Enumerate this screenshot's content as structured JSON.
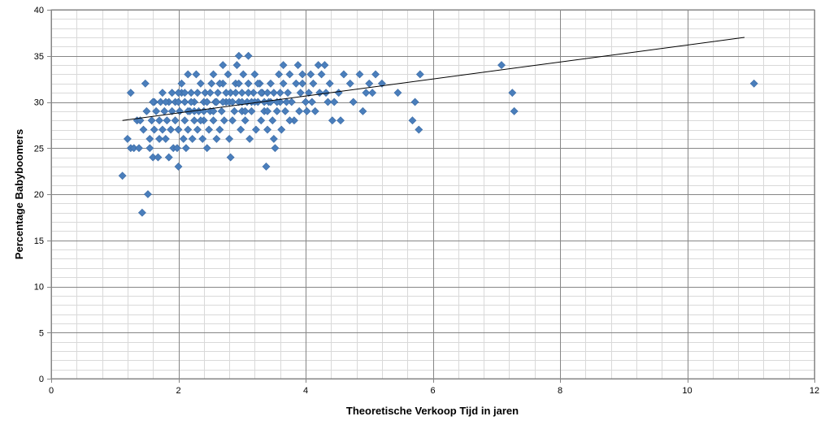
{
  "chart_data": {
    "type": "scatter",
    "xlabel": "Theoretische Verkoop Tijd in jaren",
    "ylabel": "Percentage Babyboomers",
    "xlim": [
      0,
      12
    ],
    "ylim": [
      0,
      40
    ],
    "x_ticks": [
      "0",
      "2",
      "4",
      "6",
      "8",
      "10",
      "12"
    ],
    "y_ticks": [
      "0",
      "5",
      "10",
      "15",
      "20",
      "25",
      "30",
      "35",
      "40"
    ],
    "grid": true,
    "legend": "none",
    "marker_color": "#4a7ebb",
    "trendline": {
      "color": "#000000",
      "x": [
        1.12,
        10.9
      ],
      "y": [
        28,
        37
      ]
    },
    "points": [
      [
        1.12,
        22
      ],
      [
        1.2,
        26
      ],
      [
        1.25,
        25
      ],
      [
        1.25,
        31
      ],
      [
        1.3,
        25
      ],
      [
        1.35,
        28
      ],
      [
        1.38,
        25
      ],
      [
        1.4,
        28
      ],
      [
        1.43,
        18
      ],
      [
        1.45,
        27
      ],
      [
        1.48,
        32
      ],
      [
        1.5,
        29
      ],
      [
        1.52,
        20
      ],
      [
        1.55,
        25
      ],
      [
        1.55,
        26
      ],
      [
        1.58,
        28
      ],
      [
        1.6,
        24
      ],
      [
        1.62,
        27
      ],
      [
        1.62,
        30
      ],
      [
        1.65,
        29
      ],
      [
        1.68,
        24
      ],
      [
        1.7,
        26
      ],
      [
        1.7,
        28
      ],
      [
        1.72,
        30
      ],
      [
        1.75,
        27
      ],
      [
        1.75,
        31
      ],
      [
        1.78,
        29
      ],
      [
        1.8,
        26
      ],
      [
        1.82,
        28
      ],
      [
        1.85,
        24
      ],
      [
        1.85,
        30
      ],
      [
        1.88,
        27
      ],
      [
        1.9,
        29
      ],
      [
        1.92,
        25
      ],
      [
        1.95,
        28
      ],
      [
        1.95,
        30
      ],
      [
        1.98,
        25
      ],
      [
        2.0,
        23
      ],
      [
        2.0,
        27
      ],
      [
        2.02,
        29
      ],
      [
        2.05,
        31
      ],
      [
        2.05,
        32
      ],
      [
        2.08,
        26
      ],
      [
        2.1,
        28
      ],
      [
        2.1,
        30
      ],
      [
        2.12,
        25
      ],
      [
        2.15,
        27
      ],
      [
        2.15,
        33
      ],
      [
        2.18,
        29
      ],
      [
        2.2,
        31
      ],
      [
        2.22,
        26
      ],
      [
        2.25,
        28
      ],
      [
        2.25,
        30
      ],
      [
        2.28,
        33
      ],
      [
        2.3,
        27
      ],
      [
        2.32,
        29
      ],
      [
        2.35,
        32
      ],
      [
        2.38,
        26
      ],
      [
        2.4,
        28
      ],
      [
        2.4,
        30
      ],
      [
        2.42,
        31
      ],
      [
        2.45,
        25
      ],
      [
        2.48,
        27
      ],
      [
        2.5,
        29
      ],
      [
        2.52,
        32
      ],
      [
        2.55,
        28
      ],
      [
        2.55,
        33
      ],
      [
        2.58,
        30
      ],
      [
        2.6,
        26
      ],
      [
        2.62,
        31
      ],
      [
        2.65,
        27
      ],
      [
        2.68,
        29
      ],
      [
        2.7,
        32
      ],
      [
        2.7,
        34
      ],
      [
        2.72,
        28
      ],
      [
        2.75,
        30
      ],
      [
        2.78,
        33
      ],
      [
        2.8,
        26
      ],
      [
        2.82,
        31
      ],
      [
        2.82,
        24
      ],
      [
        2.85,
        28
      ],
      [
        2.88,
        29
      ],
      [
        2.9,
        32
      ],
      [
        2.92,
        34
      ],
      [
        2.95,
        30
      ],
      [
        2.95,
        35
      ],
      [
        2.98,
        27
      ],
      [
        3.0,
        29
      ],
      [
        3.0,
        31
      ],
      [
        3.02,
        33
      ],
      [
        3.05,
        28
      ],
      [
        3.08,
        30
      ],
      [
        3.1,
        32
      ],
      [
        3.1,
        35
      ],
      [
        3.12,
        26
      ],
      [
        3.15,
        29
      ],
      [
        3.18,
        31
      ],
      [
        3.2,
        33
      ],
      [
        3.22,
        27
      ],
      [
        3.25,
        30
      ],
      [
        3.28,
        32
      ],
      [
        3.3,
        28
      ],
      [
        3.32,
        31
      ],
      [
        3.35,
        29
      ],
      [
        3.38,
        23
      ],
      [
        3.4,
        27
      ],
      [
        3.42,
        30
      ],
      [
        3.45,
        32
      ],
      [
        3.48,
        28
      ],
      [
        3.5,
        26
      ],
      [
        3.5,
        31
      ],
      [
        3.52,
        25
      ],
      [
        3.55,
        29
      ],
      [
        3.58,
        33
      ],
      [
        3.6,
        30
      ],
      [
        3.62,
        27
      ],
      [
        3.65,
        34
      ],
      [
        3.68,
        29
      ],
      [
        3.72,
        31
      ],
      [
        3.75,
        33
      ],
      [
        3.78,
        30
      ],
      [
        3.82,
        28
      ],
      [
        3.85,
        32
      ],
      [
        3.88,
        34
      ],
      [
        3.9,
        29
      ],
      [
        3.92,
        31
      ],
      [
        3.95,
        33
      ],
      [
        4.0,
        30
      ],
      [
        4.02,
        29
      ],
      [
        4.05,
        31
      ],
      [
        4.08,
        33
      ],
      [
        4.1,
        30
      ],
      [
        4.12,
        32
      ],
      [
        4.15,
        29
      ],
      [
        4.2,
        34
      ],
      [
        4.22,
        31
      ],
      [
        4.25,
        33
      ],
      [
        4.3,
        34
      ],
      [
        4.32,
        31
      ],
      [
        4.35,
        30
      ],
      [
        4.38,
        32
      ],
      [
        4.42,
        28
      ],
      [
        4.45,
        30
      ],
      [
        4.52,
        31
      ],
      [
        4.55,
        28
      ],
      [
        4.6,
        33
      ],
      [
        4.7,
        32
      ],
      [
        4.75,
        30
      ],
      [
        4.85,
        33
      ],
      [
        4.9,
        29
      ],
      [
        4.95,
        31
      ],
      [
        5.0,
        32
      ],
      [
        5.05,
        31
      ],
      [
        5.1,
        33
      ],
      [
        5.2,
        32
      ],
      [
        5.45,
        31
      ],
      [
        5.68,
        28
      ],
      [
        5.72,
        30
      ],
      [
        5.78,
        27
      ],
      [
        5.8,
        33
      ],
      [
        7.08,
        34
      ],
      [
        7.25,
        31
      ],
      [
        7.28,
        29
      ],
      [
        11.05,
        32
      ],
      [
        2.0,
        30
      ],
      [
        2.3,
        31
      ],
      [
        2.6,
        30
      ],
      [
        2.9,
        31
      ],
      [
        3.2,
        30
      ],
      [
        3.4,
        31
      ],
      [
        3.7,
        30
      ],
      [
        2.1,
        31
      ],
      [
        2.4,
        29
      ],
      [
        2.7,
        30
      ],
      [
        3.0,
        30
      ],
      [
        3.3,
        31
      ],
      [
        2.2,
        30
      ],
      [
        2.5,
        31
      ],
      [
        2.8,
        30
      ],
      [
        3.1,
        31
      ],
      [
        3.4,
        29
      ],
      [
        3.6,
        31
      ],
      [
        1.9,
        31
      ],
      [
        2.35,
        28
      ],
      [
        2.65,
        32
      ],
      [
        2.95,
        32
      ],
      [
        3.25,
        32
      ],
      [
        3.55,
        30
      ],
      [
        2.15,
        29
      ],
      [
        2.45,
        30
      ],
      [
        2.75,
        31
      ],
      [
        3.05,
        29
      ],
      [
        3.35,
        30
      ],
      [
        3.65,
        32
      ],
      [
        1.6,
        30
      ],
      [
        1.8,
        30
      ],
      [
        2.0,
        31
      ],
      [
        2.25,
        29
      ],
      [
        2.55,
        29
      ],
      [
        2.85,
        30
      ],
      [
        3.15,
        30
      ],
      [
        3.45,
        30
      ],
      [
        3.75,
        28
      ],
      [
        3.95,
        32
      ]
    ]
  }
}
